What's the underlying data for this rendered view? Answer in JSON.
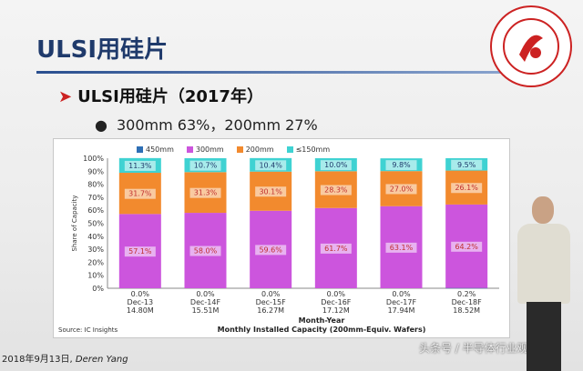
{
  "slide": {
    "title": "ULSI用硅片",
    "subtitle": "ULSI用硅片（2017年）",
    "bullet": "300mm 63%，200mm 27%",
    "footer_date": "2018年9月13日,",
    "footer_name": "Deren Yang",
    "watermark": "头条号 / 半导体行业观察",
    "colors": {
      "title": "#1f3a6b",
      "accent": "#c22222"
    }
  },
  "chart_data": {
    "type": "bar",
    "stacked": true,
    "categories": [
      "Dec-13",
      "Dec-14F",
      "Dec-15F",
      "Dec-16F",
      "Dec-17F",
      "Dec-18F"
    ],
    "category_values": [
      "14.80M",
      "15.51M",
      "16.27M",
      "17.12M",
      "17.94M",
      "18.52M"
    ],
    "series": [
      {
        "name": "450mm",
        "values": [
          0.0,
          0.0,
          0.0,
          0.0,
          0.0,
          0.2
        ],
        "color": "#2e6fb5"
      },
      {
        "name": "300mm",
        "values": [
          57.1,
          58.0,
          59.6,
          61.7,
          63.1,
          64.2
        ],
        "color": "#cc55dd"
      },
      {
        "name": "200mm",
        "values": [
          31.7,
          31.3,
          30.1,
          28.3,
          27.0,
          26.1
        ],
        "color": "#f28a2e"
      },
      {
        "name": "≤150mm",
        "values": [
          11.3,
          10.7,
          10.4,
          10.0,
          9.8,
          9.5
        ],
        "color": "#3fd2d2"
      }
    ],
    "data_labels": {
      "450mm": [
        "0.0%",
        "0.0%",
        "0.0%",
        "0.0%",
        "0.0%",
        "0.2%"
      ],
      "300mm": [
        "57.1%",
        "58.0%",
        "59.6%",
        "61.7%",
        "63.1%",
        "64.2%"
      ],
      "200mm": [
        "31.7%",
        "31.3%",
        "30.1%",
        "28.3%",
        "27.0%",
        "26.1%"
      ],
      "≤150mm": [
        "11.3%",
        "10.7%",
        "10.4%",
        "10.0%",
        "9.8%",
        "9.5%"
      ]
    },
    "ylim": [
      0,
      100
    ],
    "yticks": [
      "0%",
      "10%",
      "20%",
      "30%",
      "40%",
      "50%",
      "60%",
      "70%",
      "80%",
      "90%",
      "100%"
    ],
    "ylabel": "Share of Capacity",
    "xlabel": "Month-Year",
    "xlabel2": "Monthly Installed Capacity (200mm-Equiv. Wafers)",
    "source": "Source: IC Insights",
    "legend_position": "top",
    "grid": false
  }
}
